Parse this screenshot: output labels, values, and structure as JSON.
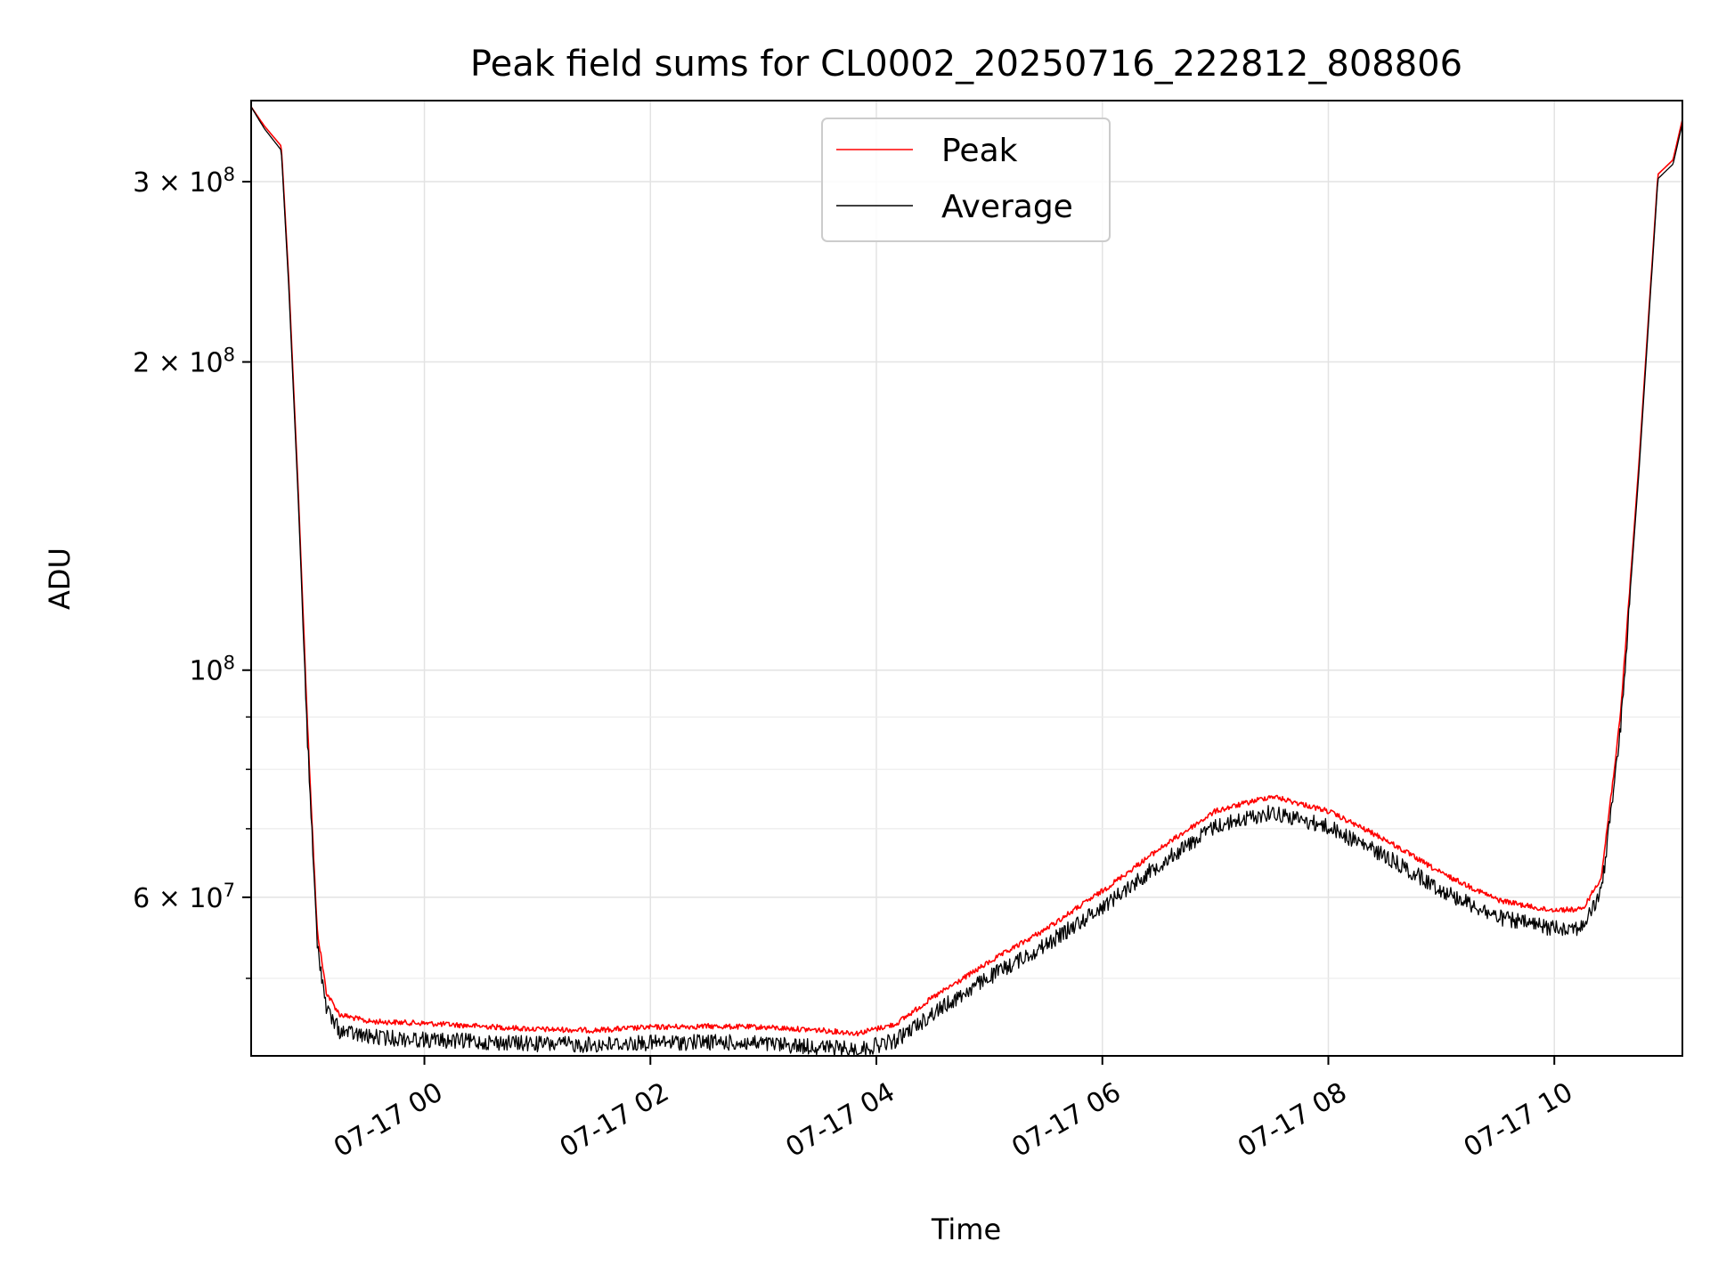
{
  "chart_data": {
    "type": "line",
    "title": "Peak field sums for CL0002_20250716_222812_808806",
    "xlabel": "Time",
    "ylabel": "ADU",
    "y_scale": "log",
    "grid": true,
    "legend_position": "top-center",
    "xlim": [
      "2025-07-16 22:28",
      "2025-07-17 11:08"
    ],
    "ylim": [
      42000000,
      360000000
    ],
    "x_tick_labels": [
      "07-17 00",
      "07-17 02",
      "07-17 04",
      "07-17 06",
      "07-17 08",
      "07-17 10"
    ],
    "x_tick_values": [
      "2025-07-17 00:00",
      "2025-07-17 02:00",
      "2025-07-17 04:00",
      "2025-07-17 06:00",
      "2025-07-17 08:00",
      "2025-07-17 10:00"
    ],
    "y_major_ticks": [
      {
        "value": 300000000,
        "label": "3 × 10^8"
      },
      {
        "value": 200000000,
        "label": "2 × 10^8"
      },
      {
        "value": 100000000,
        "label": "10^8"
      },
      {
        "value": 60000000,
        "label": "6 × 10^7"
      }
    ],
    "y_minor_ticks": [
      50000000,
      70000000,
      80000000,
      90000000
    ],
    "series": [
      {
        "name": "Peak",
        "color": "#ff0000",
        "points": [
          [
            "2025-07-16 22:28",
            355000000
          ],
          [
            "2025-07-16 22:35",
            340000000
          ],
          [
            "2025-07-16 22:44",
            325000000
          ],
          [
            "2025-07-16 22:48",
            240000000
          ],
          [
            "2025-07-16 22:53",
            150000000
          ],
          [
            "2025-07-16 22:58",
            88000000
          ],
          [
            "2025-07-16 23:03",
            56000000
          ],
          [
            "2025-07-16 23:08",
            48500000
          ],
          [
            "2025-07-16 23:15",
            46200000
          ],
          [
            "2025-07-16 23:30",
            45500000
          ],
          [
            "2025-07-17 00:00",
            45300000
          ],
          [
            "2025-07-17 00:30",
            45000000
          ],
          [
            "2025-07-17 01:00",
            44700000
          ],
          [
            "2025-07-17 01:30",
            44600000
          ],
          [
            "2025-07-17 02:00",
            44900000
          ],
          [
            "2025-07-17 02:30",
            45000000
          ],
          [
            "2025-07-17 03:00",
            44900000
          ],
          [
            "2025-07-17 03:30",
            44600000
          ],
          [
            "2025-07-17 03:50",
            44300000
          ],
          [
            "2025-07-17 04:10",
            45200000
          ],
          [
            "2025-07-17 04:30",
            48000000
          ],
          [
            "2025-07-17 05:00",
            52000000
          ],
          [
            "2025-07-17 05:30",
            56000000
          ],
          [
            "2025-07-17 06:00",
            61000000
          ],
          [
            "2025-07-17 06:30",
            67000000
          ],
          [
            "2025-07-17 07:00",
            73000000
          ],
          [
            "2025-07-17 07:30",
            75500000
          ],
          [
            "2025-07-17 08:00",
            73000000
          ],
          [
            "2025-07-17 08:30",
            68500000
          ],
          [
            "2025-07-17 09:00",
            63500000
          ],
          [
            "2025-07-17 09:30",
            59800000
          ],
          [
            "2025-07-17 09:55",
            58500000
          ],
          [
            "2025-07-17 10:15",
            58500000
          ],
          [
            "2025-07-17 10:25",
            63000000
          ],
          [
            "2025-07-17 10:35",
            90000000
          ],
          [
            "2025-07-17 10:45",
            160000000
          ],
          [
            "2025-07-17 10:55",
            305000000
          ],
          [
            "2025-07-17 11:03",
            315000000
          ],
          [
            "2025-07-17 11:08",
            345000000
          ]
        ]
      },
      {
        "name": "Average",
        "color": "#000000",
        "points": [
          [
            "2025-07-16 22:28",
            355000000
          ],
          [
            "2025-07-16 22:35",
            338000000
          ],
          [
            "2025-07-16 22:44",
            322000000
          ],
          [
            "2025-07-16 22:48",
            236000000
          ],
          [
            "2025-07-16 22:53",
            147000000
          ],
          [
            "2025-07-16 22:58",
            86000000
          ],
          [
            "2025-07-16 23:03",
            55000000
          ],
          [
            "2025-07-16 23:08",
            47200000
          ],
          [
            "2025-07-16 23:15",
            45000000
          ],
          [
            "2025-07-16 23:30",
            44400000
          ],
          [
            "2025-07-17 00:00",
            44100000
          ],
          [
            "2025-07-17 00:30",
            43900000
          ],
          [
            "2025-07-17 01:00",
            43700000
          ],
          [
            "2025-07-17 01:30",
            43600000
          ],
          [
            "2025-07-17 02:00",
            43800000
          ],
          [
            "2025-07-17 02:30",
            43900000
          ],
          [
            "2025-07-17 03:00",
            43700000
          ],
          [
            "2025-07-17 03:30",
            43400000
          ],
          [
            "2025-07-17 03:50",
            43100000
          ],
          [
            "2025-07-17 04:10",
            44000000
          ],
          [
            "2025-07-17 04:30",
            46800000
          ],
          [
            "2025-07-17 05:00",
            50800000
          ],
          [
            "2025-07-17 05:30",
            54600000
          ],
          [
            "2025-07-17 06:00",
            59500000
          ],
          [
            "2025-07-17 06:30",
            65400000
          ],
          [
            "2025-07-17 07:00",
            71300000
          ],
          [
            "2025-07-17 07:30",
            73600000
          ],
          [
            "2025-07-17 08:00",
            71200000
          ],
          [
            "2025-07-17 08:30",
            66700000
          ],
          [
            "2025-07-17 09:00",
            61800000
          ],
          [
            "2025-07-17 09:30",
            58100000
          ],
          [
            "2025-07-17 09:55",
            56800000
          ],
          [
            "2025-07-17 10:15",
            56800000
          ],
          [
            "2025-07-17 10:25",
            61500000
          ],
          [
            "2025-07-17 10:35",
            88000000
          ],
          [
            "2025-07-17 10:45",
            157000000
          ],
          [
            "2025-07-17 10:55",
            302000000
          ],
          [
            "2025-07-17 11:03",
            312000000
          ],
          [
            "2025-07-17 11:08",
            342000000
          ]
        ]
      }
    ]
  }
}
